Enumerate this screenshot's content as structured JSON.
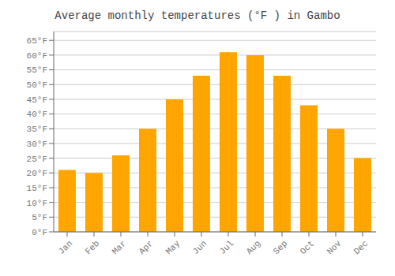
{
  "chart_data": {
    "type": "bar",
    "title": "Average monthly temperatures (°F ) in Gambo",
    "categories": [
      "Jan",
      "Feb",
      "Mar",
      "Apr",
      "May",
      "Jun",
      "Jul",
      "Aug",
      "Sep",
      "Oct",
      "Nov",
      "Dec"
    ],
    "values": [
      21,
      20,
      26,
      35,
      45,
      53,
      61,
      60,
      53,
      43,
      35,
      25
    ],
    "color": "#FFA500",
    "ylim": [
      0,
      68
    ],
    "yticks": [
      {
        "value": 0,
        "label": "0°F"
      },
      {
        "value": 5,
        "label": "5°F"
      },
      {
        "value": 10,
        "label": "10°F"
      },
      {
        "value": 15,
        "label": "15°F"
      },
      {
        "value": 20,
        "label": "20°F"
      },
      {
        "value": 25,
        "label": "25°F"
      },
      {
        "value": 30,
        "label": "30°F"
      },
      {
        "value": 35,
        "label": "35°F"
      },
      {
        "value": 40,
        "label": "40°F"
      },
      {
        "value": 45,
        "label": "45°F"
      },
      {
        "value": 50,
        "label": "50°F"
      },
      {
        "value": 55,
        "label": "55°F"
      },
      {
        "value": 60,
        "label": "60°F"
      },
      {
        "value": 65,
        "label": "65°F"
      }
    ],
    "grid": true
  }
}
